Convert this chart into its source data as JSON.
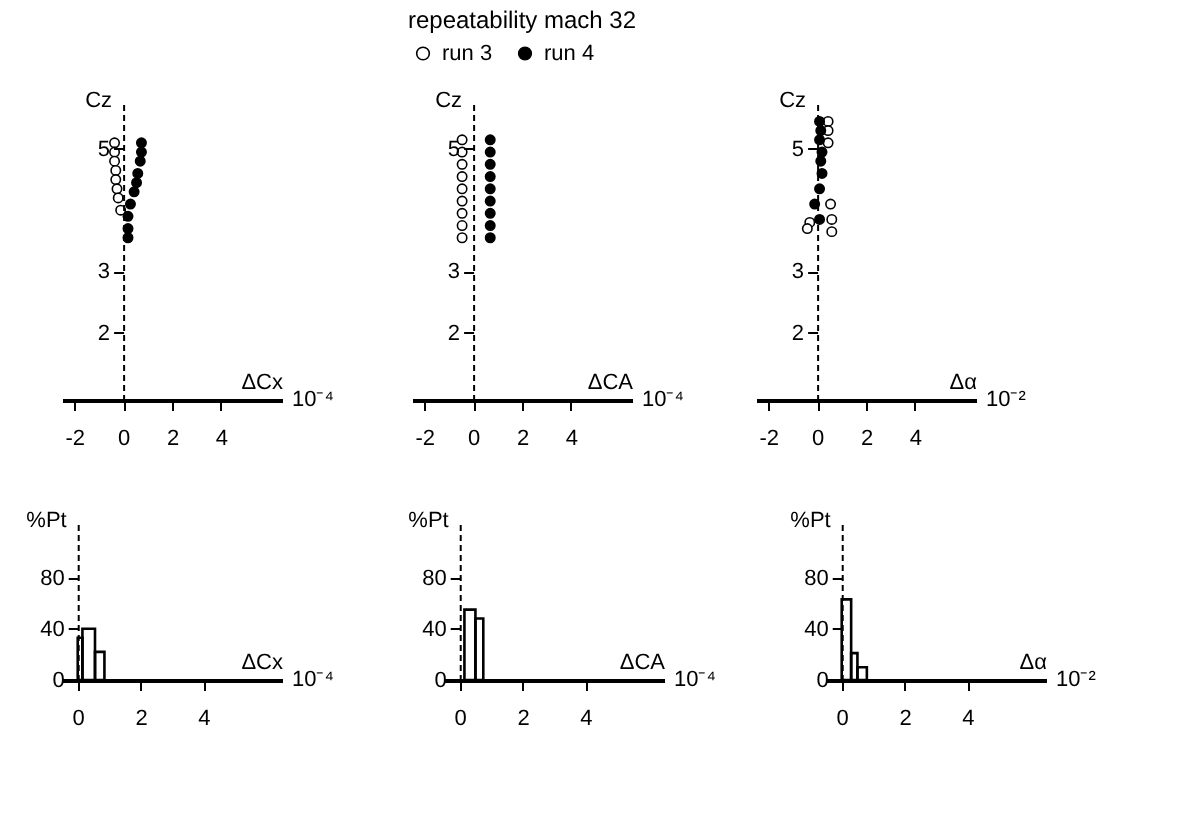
{
  "chart_data": [
    {
      "type": "scatter",
      "xlabel": "ΔCx",
      "ylabel": "Cz",
      "marker": "circle",
      "xlim": [
        -2.5,
        6.5
      ],
      "ylim": [
        0.9,
        5.8
      ],
      "xticks": [
        -2,
        0,
        2,
        4
      ],
      "yticks": [
        2,
        3,
        5
      ],
      "annotations": [
        "10⁻⁴"
      ],
      "series": [
        {
          "color": "#ffffff",
          "x": [
            -0.35,
            -0.35,
            -0.35,
            -0.3,
            -0.3,
            -0.25,
            -0.2,
            -0.1
          ],
          "values": [
            5.1,
            4.95,
            4.8,
            4.65,
            4.5,
            4.35,
            4.2,
            4.0
          ]
        },
        {
          "color": "#000000",
          "x": [
            0.75,
            0.75,
            0.7,
            0.6,
            0.55,
            0.45,
            0.3,
            0.2,
            0.2,
            0.2
          ],
          "values": [
            5.1,
            4.95,
            4.8,
            4.6,
            4.45,
            4.3,
            4.1,
            3.9,
            3.7,
            3.55
          ]
        }
      ]
    },
    {
      "type": "scatter",
      "title": "repeatability mach 32",
      "xlabel": "ΔCA",
      "ylabel": "Cz",
      "legend": "top",
      "marker": "circle",
      "xlim": [
        -2.5,
        6.5
      ],
      "ylim": [
        0.9,
        5.8
      ],
      "xticks": [
        -2,
        0,
        2,
        4
      ],
      "yticks": [
        2,
        3,
        5
      ],
      "annotations": [
        "10⁻⁴"
      ],
      "series": [
        {
          "name": "run 3",
          "color": "#ffffff",
          "x": [
            -0.45,
            -0.45,
            -0.45,
            -0.45,
            -0.45,
            -0.45,
            -0.45,
            -0.45,
            -0.45
          ],
          "values": [
            5.15,
            4.95,
            4.75,
            4.55,
            4.35,
            4.15,
            3.95,
            3.75,
            3.55
          ]
        },
        {
          "name": "run 4",
          "color": "#000000",
          "x": [
            0.7,
            0.7,
            0.7,
            0.7,
            0.7,
            0.7,
            0.7,
            0.7,
            0.7
          ],
          "values": [
            5.15,
            4.95,
            4.75,
            4.55,
            4.35,
            4.15,
            3.95,
            3.75,
            3.55
          ]
        }
      ]
    },
    {
      "type": "scatter",
      "xlabel": "Δα",
      "ylabel": "Cz",
      "marker": "circle",
      "xlim": [
        -2.5,
        6.5
      ],
      "ylim": [
        0.9,
        5.8
      ],
      "xticks": [
        -2,
        0,
        2,
        4
      ],
      "yticks": [
        2,
        3,
        5
      ],
      "annotations": [
        "10⁻²"
      ],
      "series": [
        {
          "color": "#ffffff",
          "x": [
            0.45,
            0.45,
            0.45,
            0.55,
            0.6,
            0.6,
            -0.3,
            -0.4
          ],
          "values": [
            5.45,
            5.3,
            5.1,
            4.1,
            3.85,
            3.65,
            3.8,
            3.7
          ]
        },
        {
          "color": "#000000",
          "x": [
            0.1,
            0.15,
            0.1,
            0.2,
            0.15,
            0.2,
            0.1,
            -0.1,
            0.1
          ],
          "values": [
            5.45,
            5.3,
            5.15,
            4.95,
            4.8,
            4.6,
            4.35,
            4.1,
            3.85
          ]
        }
      ]
    },
    {
      "type": "histogram",
      "xlabel": "ΔCx",
      "ylabel": "%Pt",
      "color": "#000000",
      "xlim": [
        -0.5,
        6.5
      ],
      "ylim": [
        0,
        125
      ],
      "xticks": [
        0,
        2,
        4
      ],
      "yticks": [
        0,
        40,
        80
      ],
      "annotations": [
        "10⁻⁴"
      ],
      "bins": [
        0,
        0.15,
        0.55,
        0.85
      ],
      "values": [
        33,
        40,
        22
      ]
    },
    {
      "type": "histogram",
      "xlabel": "ΔCA",
      "ylabel": "%Pt",
      "color": "#000000",
      "xlim": [
        -0.5,
        6.5
      ],
      "ylim": [
        0,
        125
      ],
      "xticks": [
        0,
        2,
        4
      ],
      "yticks": [
        0,
        40,
        80
      ],
      "annotations": [
        "10⁻⁴"
      ],
      "bins": [
        0.15,
        0.5,
        0.75
      ],
      "values": [
        55,
        48
      ]
    },
    {
      "type": "histogram",
      "xlabel": "Δα",
      "ylabel": "%Pt",
      "color": "#000000",
      "xlim": [
        -0.5,
        6.5
      ],
      "ylim": [
        0,
        125
      ],
      "xticks": [
        0,
        2,
        4
      ],
      "yticks": [
        0,
        40,
        80
      ],
      "annotations": [
        "10⁻²"
      ],
      "bins": [
        0,
        0.3,
        0.5,
        0.8
      ],
      "values": [
        63,
        21,
        10
      ]
    }
  ]
}
